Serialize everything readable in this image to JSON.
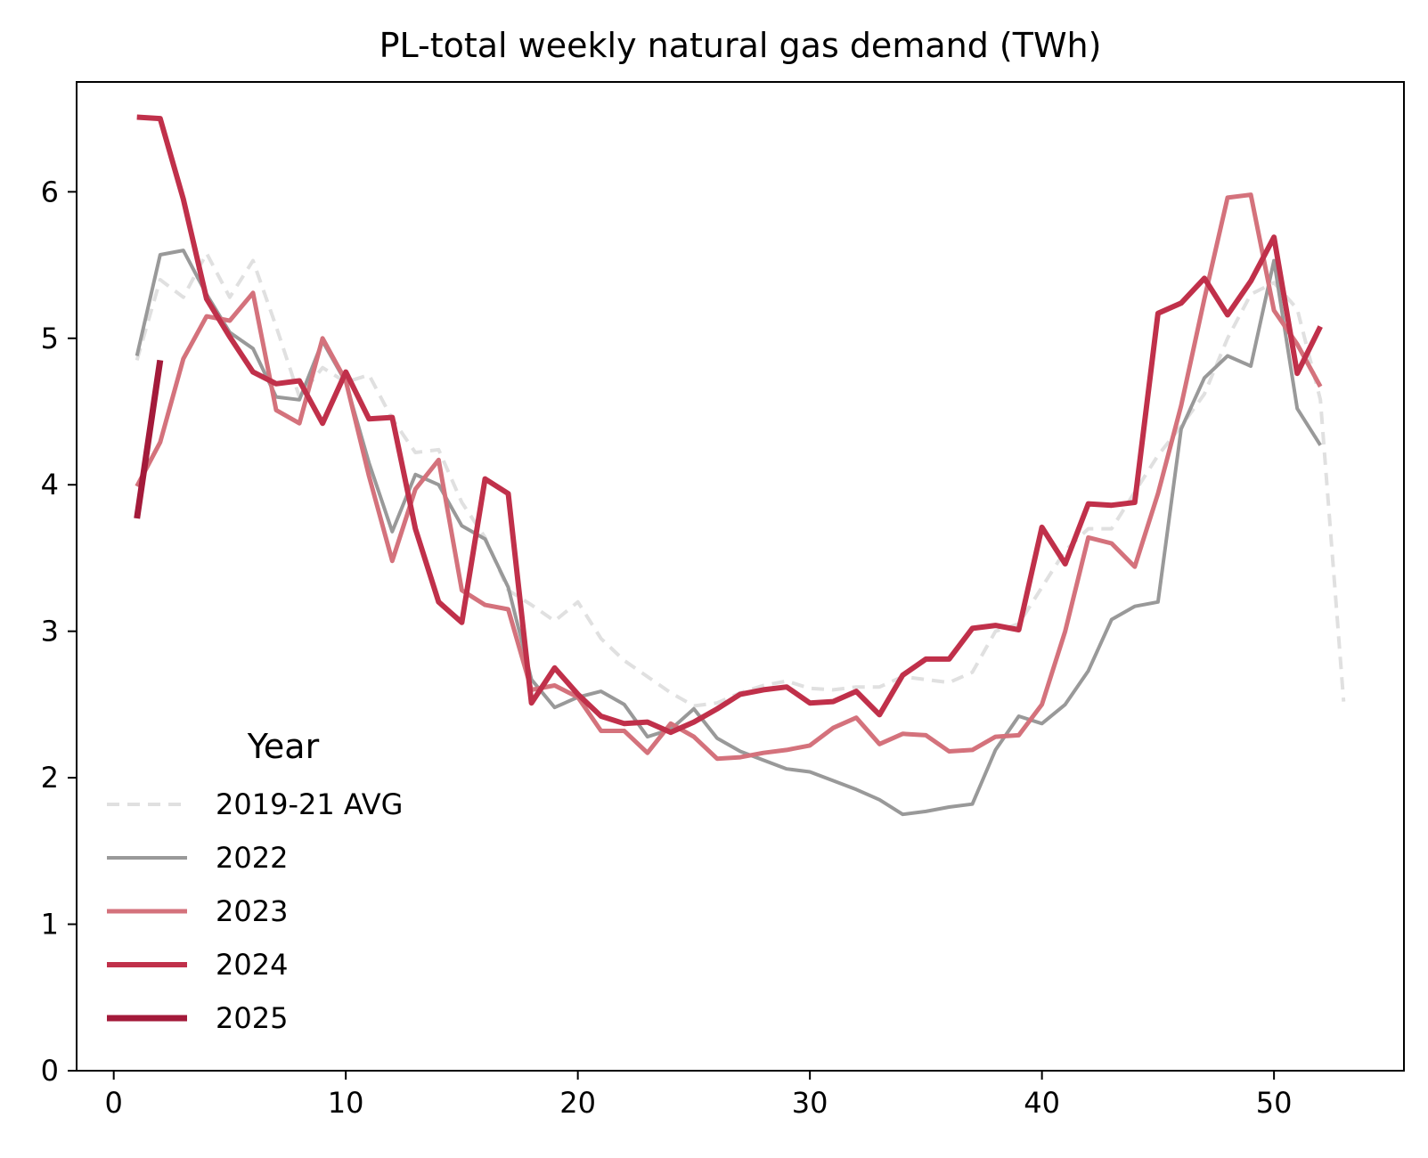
{
  "chart_data": {
    "type": "line",
    "title": "PL-total weekly natural gas demand (TWh)",
    "xlabel": "",
    "ylabel": "",
    "xlim": [
      -1.6,
      55.6
    ],
    "ylim": [
      0,
      6.75
    ],
    "xticks": [
      0,
      10,
      20,
      30,
      40,
      50
    ],
    "yticks": [
      0,
      1,
      2,
      3,
      4,
      5,
      6
    ],
    "grid": false,
    "legend": {
      "title": "Year",
      "placement": "lower-left"
    },
    "series": [
      {
        "name": "2019-21 AVG",
        "color": "#e0e0e0",
        "dashed": true,
        "width": 4,
        "x": [
          1,
          2,
          3,
          4,
          5,
          6,
          7,
          8,
          9,
          10,
          11,
          12,
          13,
          14,
          15,
          16,
          17,
          18,
          19,
          20,
          21,
          22,
          23,
          24,
          25,
          26,
          27,
          28,
          29,
          30,
          31,
          32,
          33,
          34,
          35,
          36,
          37,
          38,
          39,
          40,
          41,
          42,
          43,
          44,
          45,
          46,
          47,
          48,
          49,
          50,
          51,
          52,
          53
        ],
        "values": [
          4.85,
          5.4,
          5.28,
          5.58,
          5.28,
          5.53,
          5.08,
          4.6,
          4.8,
          4.7,
          4.75,
          4.45,
          4.22,
          4.24,
          3.88,
          3.64,
          3.28,
          3.18,
          3.07,
          3.2,
          2.95,
          2.8,
          2.69,
          2.58,
          2.49,
          2.51,
          2.58,
          2.63,
          2.66,
          2.61,
          2.6,
          2.62,
          2.62,
          2.69,
          2.67,
          2.65,
          2.72,
          3.0,
          3.05,
          3.3,
          3.55,
          3.7,
          3.7,
          3.95,
          4.2,
          4.4,
          4.62,
          5.0,
          5.3,
          5.38,
          5.2,
          4.58,
          2.52
        ]
      },
      {
        "name": "2022",
        "color": "#999999",
        "dashed": false,
        "width": 4,
        "x": [
          1,
          2,
          3,
          4,
          5,
          6,
          7,
          8,
          9,
          10,
          11,
          12,
          13,
          14,
          15,
          16,
          17,
          18,
          19,
          20,
          21,
          22,
          23,
          24,
          25,
          26,
          27,
          28,
          29,
          30,
          31,
          32,
          33,
          34,
          35,
          36,
          37,
          38,
          39,
          40,
          41,
          42,
          43,
          44,
          45,
          46,
          47,
          48,
          49,
          50,
          51,
          52
        ],
        "values": [
          4.88,
          5.57,
          5.6,
          5.3,
          5.04,
          4.93,
          4.6,
          4.58,
          4.98,
          4.7,
          4.15,
          3.68,
          4.07,
          4.0,
          3.72,
          3.63,
          3.3,
          2.67,
          2.48,
          2.55,
          2.59,
          2.5,
          2.28,
          2.33,
          2.47,
          2.27,
          2.18,
          2.12,
          2.06,
          2.04,
          1.98,
          1.92,
          1.85,
          1.75,
          1.77,
          1.8,
          1.82,
          2.19,
          2.42,
          2.37,
          2.5,
          2.73,
          3.08,
          3.17,
          3.2,
          4.38,
          4.73,
          4.88,
          4.81,
          5.53,
          4.52,
          4.27
        ]
      },
      {
        "name": "2023",
        "color": "#d4727c",
        "dashed": false,
        "width": 5,
        "x": [
          1,
          2,
          3,
          4,
          5,
          6,
          7,
          8,
          9,
          10,
          11,
          12,
          13,
          14,
          15,
          16,
          17,
          18,
          19,
          20,
          21,
          22,
          23,
          24,
          25,
          26,
          27,
          28,
          29,
          30,
          31,
          32,
          33,
          34,
          35,
          36,
          37,
          38,
          39,
          40,
          41,
          42,
          43,
          44,
          45,
          46,
          47,
          48,
          49,
          50,
          51,
          52
        ],
        "values": [
          3.99,
          4.29,
          4.86,
          5.15,
          5.12,
          5.31,
          4.51,
          4.42,
          5.0,
          4.71,
          4.06,
          3.48,
          3.97,
          4.17,
          3.28,
          3.18,
          3.15,
          2.6,
          2.63,
          2.55,
          2.32,
          2.32,
          2.17,
          2.37,
          2.28,
          2.13,
          2.14,
          2.17,
          2.19,
          2.22,
          2.34,
          2.41,
          2.23,
          2.3,
          2.29,
          2.18,
          2.19,
          2.28,
          2.29,
          2.5,
          3.0,
          3.64,
          3.6,
          3.44,
          3.94,
          4.54,
          5.27,
          5.96,
          5.98,
          5.19,
          4.96,
          4.67
        ]
      },
      {
        "name": "2024",
        "color": "#c0304a",
        "dashed": false,
        "width": 6,
        "x": [
          1,
          2,
          3,
          4,
          5,
          6,
          7,
          8,
          9,
          10,
          11,
          12,
          13,
          14,
          15,
          16,
          17,
          18,
          19,
          20,
          21,
          22,
          23,
          24,
          25,
          26,
          27,
          28,
          29,
          30,
          31,
          32,
          33,
          34,
          35,
          36,
          37,
          38,
          39,
          40,
          41,
          42,
          43,
          44,
          45,
          46,
          47,
          48,
          49,
          50,
          51,
          52
        ],
        "values": [
          6.51,
          6.5,
          5.95,
          5.27,
          5.01,
          4.77,
          4.69,
          4.71,
          4.42,
          4.77,
          4.45,
          4.46,
          3.7,
          3.2,
          3.06,
          4.04,
          3.94,
          2.51,
          2.75,
          2.57,
          2.42,
          2.37,
          2.38,
          2.31,
          2.38,
          2.47,
          2.57,
          2.6,
          2.62,
          2.51,
          2.52,
          2.59,
          2.43,
          2.7,
          2.81,
          2.81,
          3.02,
          3.04,
          3.01,
          3.71,
          3.46,
          3.87,
          3.86,
          3.88,
          5.17,
          5.24,
          5.41,
          5.16,
          5.39,
          5.69,
          4.76,
          5.08
        ]
      },
      {
        "name": "2025",
        "color": "#a31a3a",
        "dashed": false,
        "width": 7,
        "x": [
          1,
          2
        ],
        "values": [
          3.77,
          4.85
        ]
      }
    ]
  }
}
